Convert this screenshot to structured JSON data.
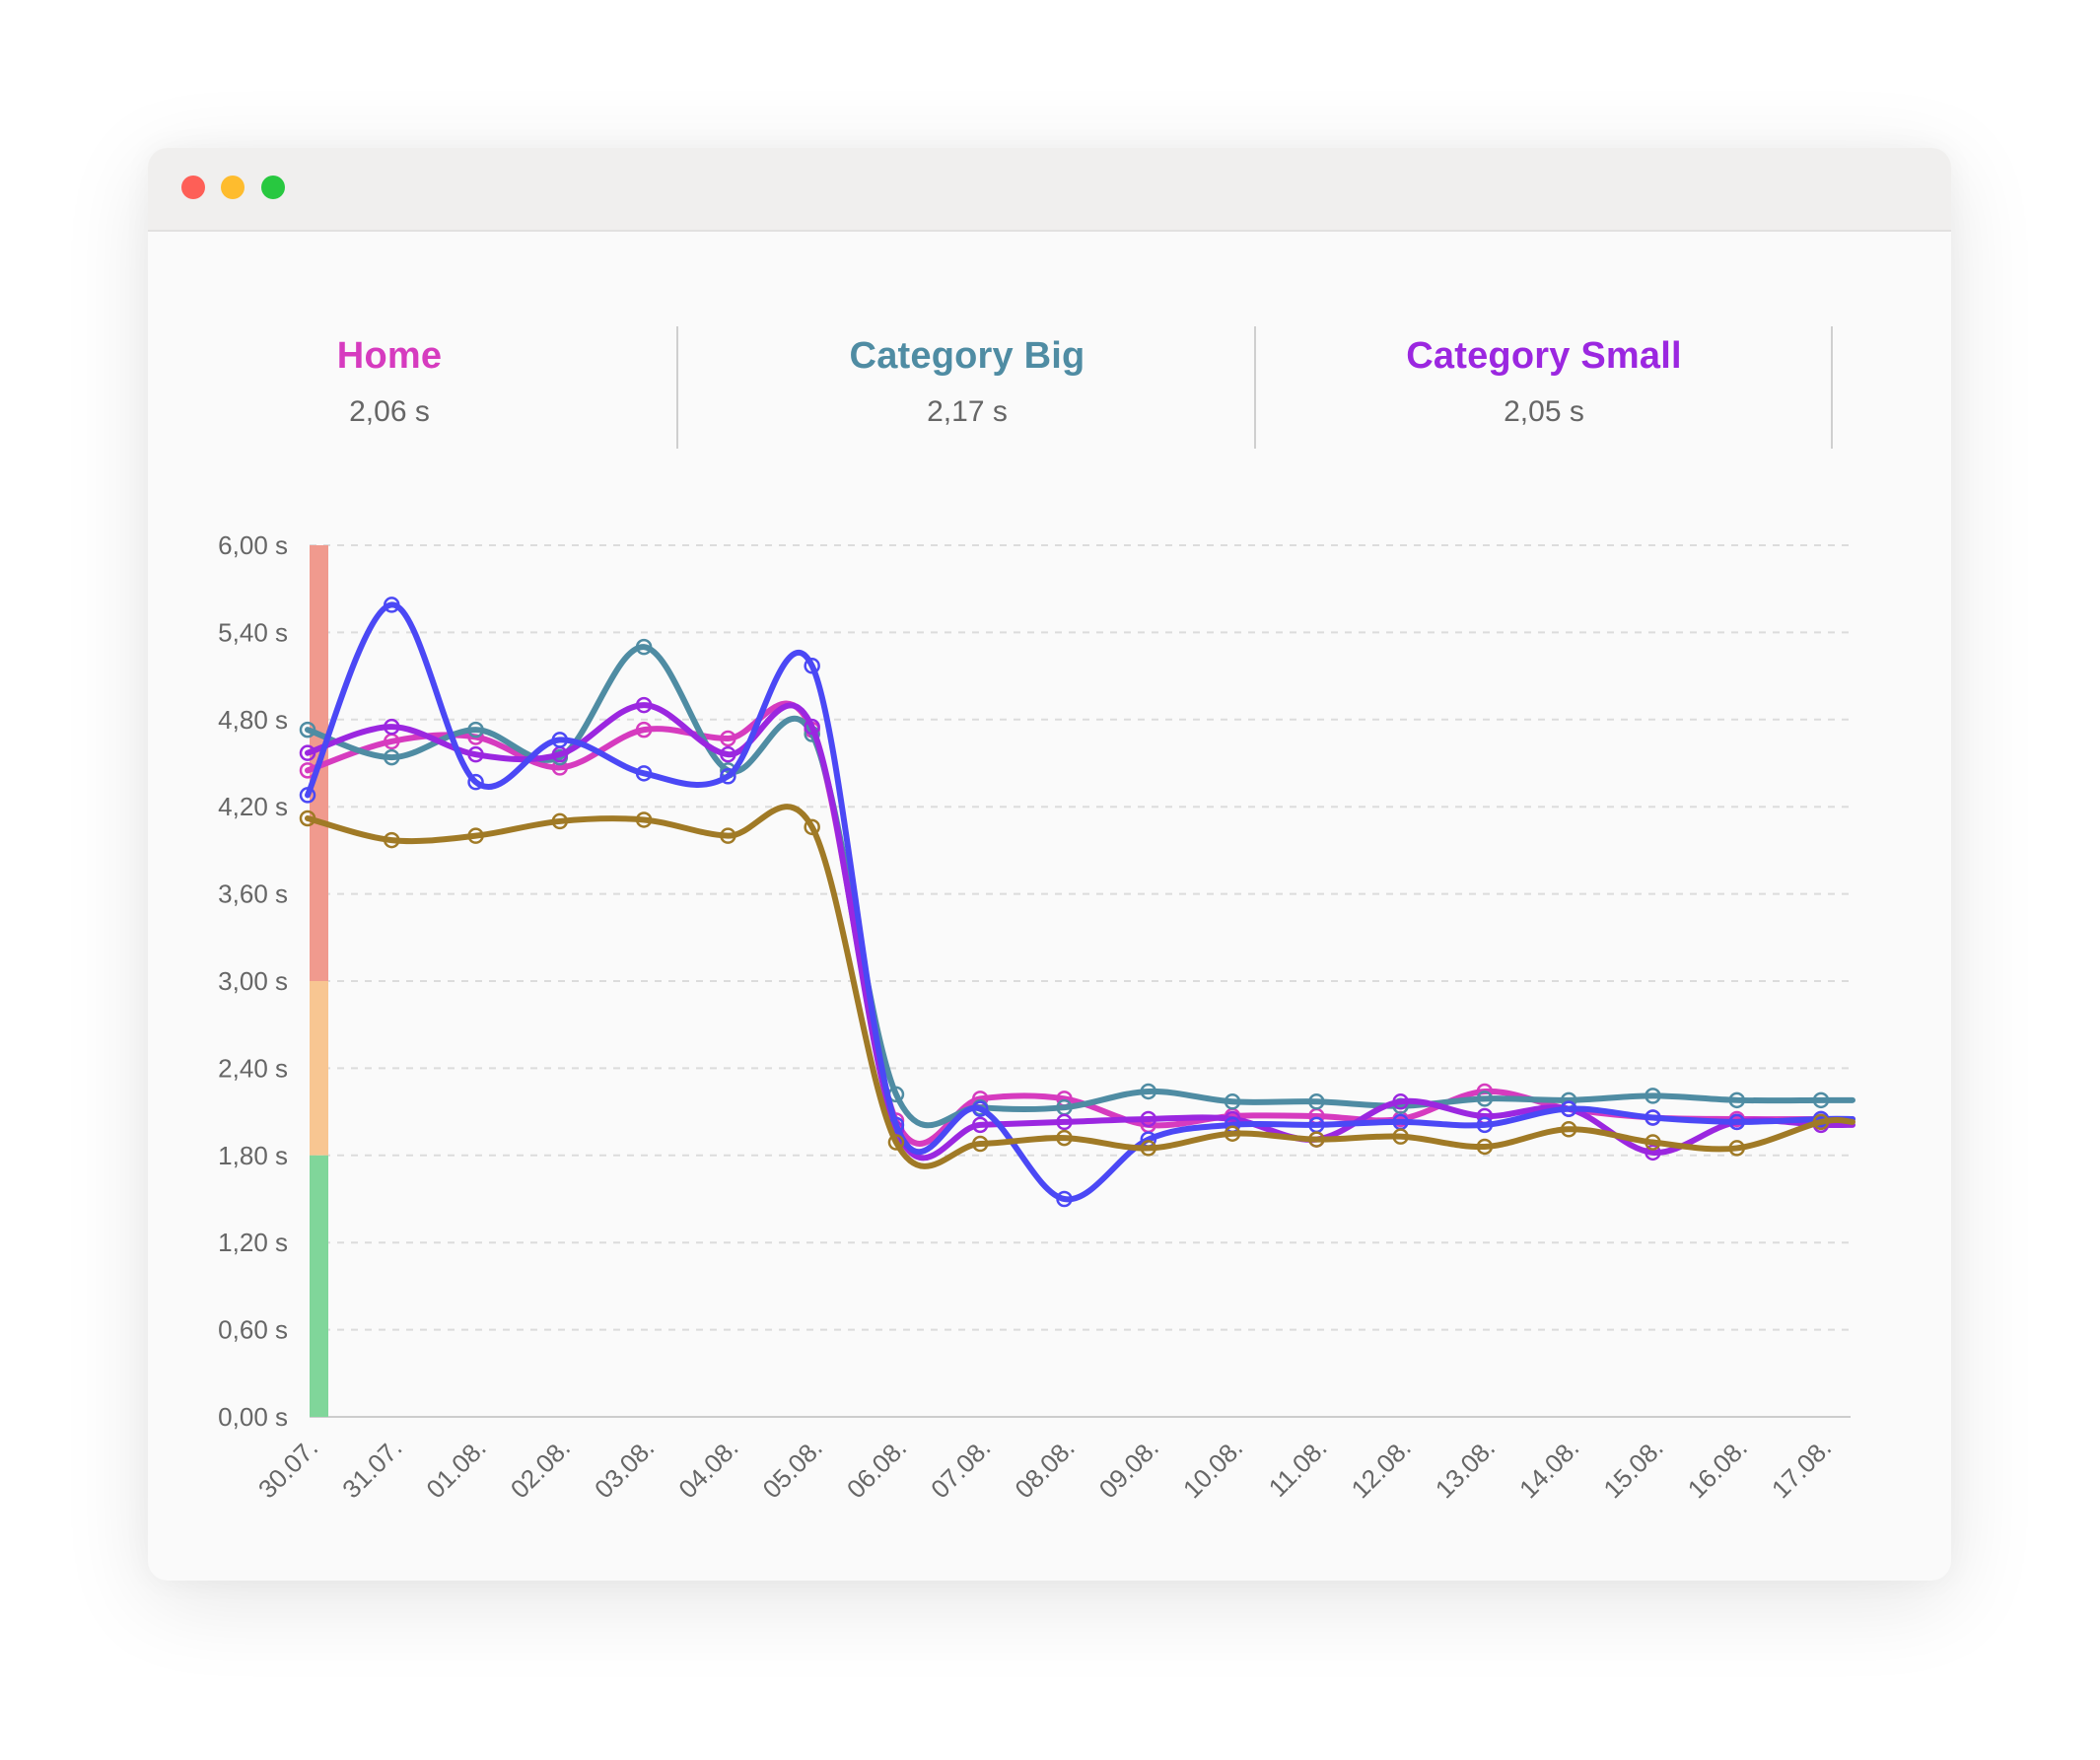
{
  "window": {
    "controls": [
      "close",
      "minimize",
      "maximize"
    ],
    "control_colors": [
      "#fe5f57",
      "#febc2e",
      "#28c840"
    ]
  },
  "summary": [
    {
      "label": "Home",
      "value": "2,06 s",
      "color": "#d63bbf"
    },
    {
      "label": "Category Big",
      "value": "2,17 s",
      "color": "#4f8ca3"
    },
    {
      "label": "Category Small",
      "value": "2,05 s",
      "color": "#9b27e0"
    }
  ],
  "chart_data": {
    "type": "line",
    "smooth": true,
    "markers": "hollow-circle",
    "ylim": [
      0,
      6
    ],
    "yticks": [
      "0,00 s",
      "0,60 s",
      "1,20 s",
      "1,80 s",
      "2,40 s",
      "3,00 s",
      "3,60 s",
      "4,20 s",
      "4,80 s",
      "5,40 s",
      "6,00 s"
    ],
    "ytick_values": [
      0,
      0.6,
      1.2,
      1.8,
      2.4,
      3.0,
      3.6,
      4.2,
      4.8,
      5.4,
      6.0
    ],
    "grid": "horizontal-dashed",
    "x": [
      "30.07.",
      "31.07.",
      "01.08.",
      "02.08.",
      "03.08.",
      "04.08.",
      "05.08.",
      "06.08.",
      "07.08.",
      "08.08.",
      "09.08.",
      "10.08.",
      "11.08.",
      "12.08.",
      "13.08.",
      "14.08.",
      "15.08.",
      "16.08.",
      "17.08."
    ],
    "threshold_bands": [
      {
        "from": 3.0,
        "to": 6.0,
        "color": "#f09a8e"
      },
      {
        "from": 1.8,
        "to": 3.0,
        "color": "#f8c692"
      },
      {
        "from": 0,
        "to": 1.8,
        "color": "#80d69a"
      }
    ],
    "series": [
      {
        "name": "Home",
        "color": "#d63bbf",
        "values": [
          4.45,
          4.65,
          4.68,
          4.47,
          4.73,
          4.67,
          4.73,
          2.04,
          2.19,
          2.19,
          2.01,
          2.07,
          2.07,
          2.05,
          2.24,
          2.12,
          2.06,
          2.05,
          2.05
        ]
      },
      {
        "name": "Category Big",
        "color": "#4f8ca3",
        "values": [
          4.73,
          4.54,
          4.73,
          4.54,
          5.3,
          4.45,
          4.7,
          2.22,
          2.13,
          2.13,
          2.24,
          2.17,
          2.17,
          2.14,
          2.19,
          2.18,
          2.21,
          2.18,
          2.18
        ]
      },
      {
        "name": "Category Small",
        "color": "#9b27e0",
        "values": [
          4.57,
          4.75,
          4.56,
          4.56,
          4.9,
          4.56,
          4.75,
          1.98,
          2.01,
          2.03,
          2.05,
          2.05,
          1.91,
          2.17,
          2.07,
          2.12,
          1.82,
          2.03,
          2.01
        ]
      },
      {
        "color": "#4b48f5",
        "values": [
          4.28,
          5.59,
          4.37,
          4.66,
          4.43,
          4.41,
          5.17,
          2.01,
          2.12,
          1.5,
          1.91,
          2.01,
          2.01,
          2.03,
          2.01,
          2.12,
          2.06,
          2.03,
          2.05
        ]
      },
      {
        "color": "#a07a26",
        "values": [
          4.12,
          3.97,
          4.0,
          4.1,
          4.11,
          4.0,
          4.06,
          1.89,
          1.88,
          1.92,
          1.85,
          1.95,
          1.91,
          1.93,
          1.86,
          1.98,
          1.89,
          1.85,
          2.03
        ]
      }
    ]
  }
}
